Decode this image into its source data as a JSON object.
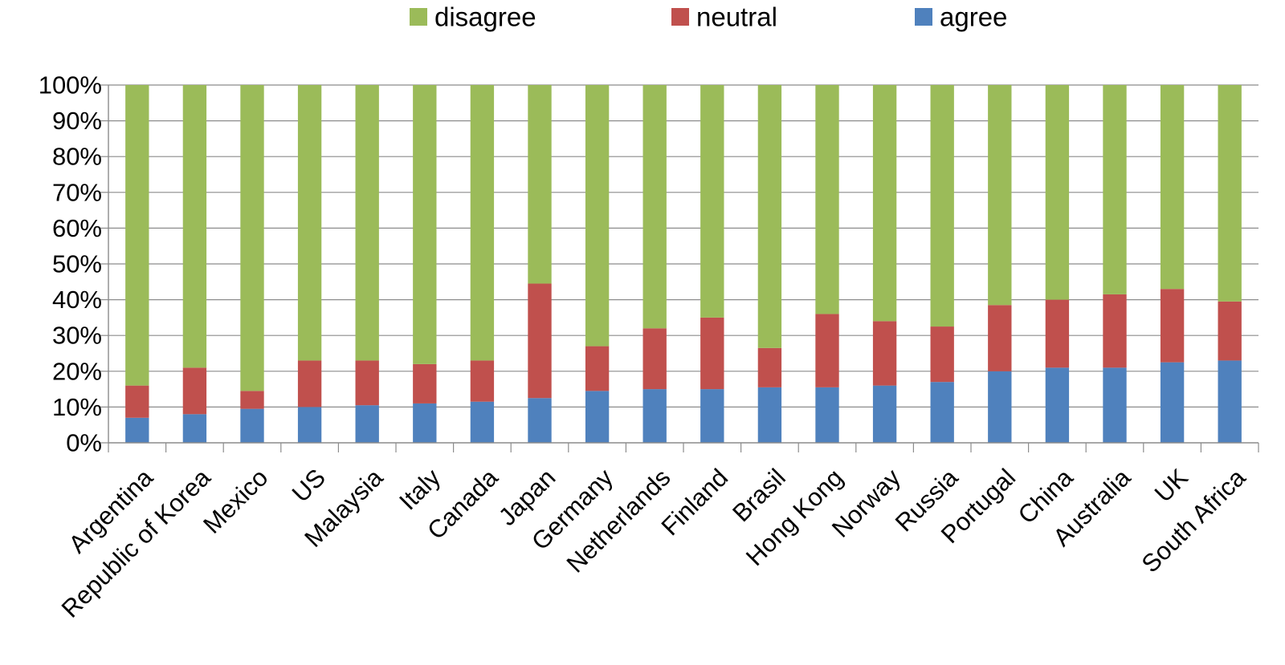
{
  "chart_data": {
    "type": "bar",
    "stacked": true,
    "percent_stacked": true,
    "title": "",
    "xlabel": "",
    "ylabel": "",
    "ylim": [
      0,
      100
    ],
    "y_ticks": [
      "0%",
      "10%",
      "20%",
      "30%",
      "40%",
      "50%",
      "60%",
      "70%",
      "80%",
      "90%",
      "100%"
    ],
    "y_grid": true,
    "legend_position": "top",
    "categories": [
      "Argentina",
      "Republic of Korea",
      "Mexico",
      "US",
      "Malaysia",
      "Italy",
      "Canada",
      "Japan",
      "Germany",
      "Netherlands",
      "Finland",
      "Brasil",
      "Hong Kong",
      "Norway",
      "Russia",
      "Portugal",
      "China",
      "Australia",
      "UK",
      "South Africa"
    ],
    "series": [
      {
        "name": "agree",
        "color": "#4F81BD",
        "values": [
          7,
          8,
          9.5,
          10,
          10.5,
          11,
          11.5,
          12.5,
          14.5,
          15,
          15,
          15.5,
          15.5,
          16,
          17,
          20,
          21,
          21,
          22.5,
          23
        ]
      },
      {
        "name": "neutral",
        "color": "#C0504D",
        "values": [
          9,
          13,
          5,
          13,
          12.5,
          11,
          11.5,
          32,
          12.5,
          17,
          20,
          11,
          20.5,
          18,
          15.5,
          18.5,
          19,
          20.5,
          20.5,
          16.5
        ]
      },
      {
        "name": "disagree",
        "color": "#9BBB59",
        "values": [
          84,
          79,
          85.5,
          77,
          77,
          78,
          77,
          55.5,
          73,
          68,
          65,
          73.5,
          64,
          66,
          67.5,
          61.5,
          60,
          58.5,
          57,
          60.5
        ]
      }
    ],
    "legend_order": [
      "disagree",
      "neutral",
      "agree"
    ]
  }
}
